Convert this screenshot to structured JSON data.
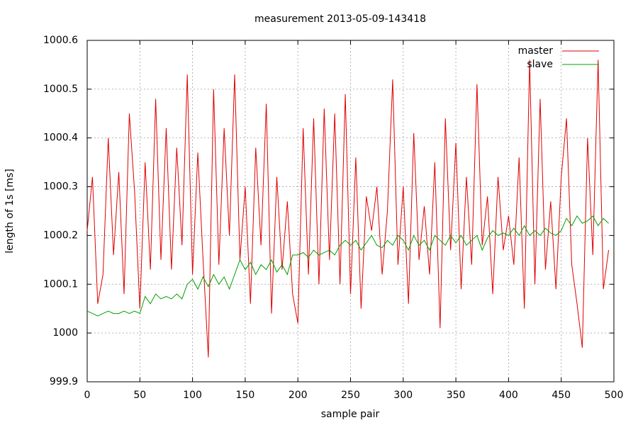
{
  "chart_data": {
    "type": "line",
    "title": "measurement 2013-05-09-143418",
    "x_label": "sample pair",
    "y_label": "length of 1s [ms]",
    "xlim": [
      0,
      500
    ],
    "ylim": [
      999.9,
      1000.6
    ],
    "xticks": [
      0,
      50,
      100,
      150,
      200,
      250,
      300,
      350,
      400,
      450,
      500
    ],
    "yticks": [
      999.9,
      1000,
      1000.1,
      1000.2,
      1000.3,
      1000.4,
      1000.5,
      1000.6
    ],
    "grid": true,
    "legend": "top-right",
    "x": [
      0,
      5,
      10,
      15,
      20,
      25,
      30,
      35,
      40,
      45,
      50,
      55,
      60,
      65,
      70,
      75,
      80,
      85,
      90,
      95,
      100,
      105,
      110,
      115,
      120,
      125,
      130,
      135,
      140,
      145,
      150,
      155,
      160,
      165,
      170,
      175,
      180,
      185,
      190,
      195,
      200,
      205,
      210,
      215,
      220,
      225,
      230,
      235,
      240,
      245,
      250,
      255,
      260,
      265,
      270,
      275,
      280,
      285,
      290,
      295,
      300,
      305,
      310,
      315,
      320,
      325,
      330,
      335,
      340,
      345,
      350,
      355,
      360,
      365,
      370,
      375,
      380,
      385,
      390,
      395,
      400,
      405,
      410,
      415,
      420,
      425,
      430,
      435,
      440,
      445,
      450,
      455,
      460,
      465,
      470,
      475,
      480,
      485,
      490,
      495
    ],
    "series": [
      {
        "name": "master",
        "color": "#e00000",
        "values": [
          1000.21,
          1000.32,
          1000.06,
          1000.12,
          1000.4,
          1000.16,
          1000.33,
          1000.08,
          1000.45,
          1000.29,
          1000.05,
          1000.35,
          1000.13,
          1000.48,
          1000.15,
          1000.42,
          1000.13,
          1000.38,
          1000.18,
          1000.53,
          1000.12,
          1000.37,
          1000.15,
          999.95,
          1000.5,
          1000.14,
          1000.42,
          1000.2,
          1000.53,
          1000.15,
          1000.3,
          1000.06,
          1000.38,
          1000.18,
          1000.47,
          1000.04,
          1000.32,
          1000.13,
          1000.27,
          1000.08,
          1000.02,
          1000.42,
          1000.12,
          1000.44,
          1000.1,
          1000.46,
          1000.15,
          1000.45,
          1000.1,
          1000.49,
          1000.08,
          1000.36,
          1000.05,
          1000.28,
          1000.21,
          1000.3,
          1000.12,
          1000.25,
          1000.52,
          1000.14,
          1000.3,
          1000.06,
          1000.41,
          1000.15,
          1000.26,
          1000.12,
          1000.35,
          1000.01,
          1000.44,
          1000.17,
          1000.39,
          1000.09,
          1000.32,
          1000.14,
          1000.51,
          1000.18,
          1000.28,
          1000.08,
          1000.32,
          1000.17,
          1000.24,
          1000.14,
          1000.36,
          1000.05,
          1000.56,
          1000.1,
          1000.48,
          1000.13,
          1000.27,
          1000.09,
          1000.32,
          1000.44,
          1000.14,
          1000.06,
          999.97,
          1000.4,
          1000.16,
          1000.56,
          1000.09,
          1000.17
        ]
      },
      {
        "name": "slave",
        "color": "#00a000",
        "values": [
          1000.045,
          1000.04,
          1000.035,
          1000.04,
          1000.045,
          1000.04,
          1000.04,
          1000.045,
          1000.04,
          1000.045,
          1000.04,
          1000.075,
          1000.06,
          1000.08,
          1000.07,
          1000.075,
          1000.07,
          1000.08,
          1000.07,
          1000.1,
          1000.11,
          1000.09,
          1000.115,
          1000.095,
          1000.12,
          1000.1,
          1000.115,
          1000.09,
          1000.12,
          1000.15,
          1000.13,
          1000.145,
          1000.12,
          1000.14,
          1000.13,
          1000.15,
          1000.125,
          1000.14,
          1000.12,
          1000.16,
          1000.16,
          1000.165,
          1000.155,
          1000.17,
          1000.16,
          1000.165,
          1000.17,
          1000.16,
          1000.18,
          1000.19,
          1000.18,
          1000.19,
          1000.17,
          1000.185,
          1000.2,
          1000.18,
          1000.175,
          1000.19,
          1000.18,
          1000.2,
          1000.19,
          1000.17,
          1000.2,
          1000.18,
          1000.19,
          1000.17,
          1000.2,
          1000.19,
          1000.18,
          1000.2,
          1000.185,
          1000.2,
          1000.18,
          1000.19,
          1000.2,
          1000.17,
          1000.195,
          1000.21,
          1000.2,
          1000.205,
          1000.2,
          1000.215,
          1000.2,
          1000.22,
          1000.2,
          1000.21,
          1000.2,
          1000.215,
          1000.205,
          1000.2,
          1000.21,
          1000.235,
          1000.22,
          1000.24,
          1000.225,
          1000.23,
          1000.24,
          1000.22,
          1000.235,
          1000.225
        ]
      }
    ]
  }
}
